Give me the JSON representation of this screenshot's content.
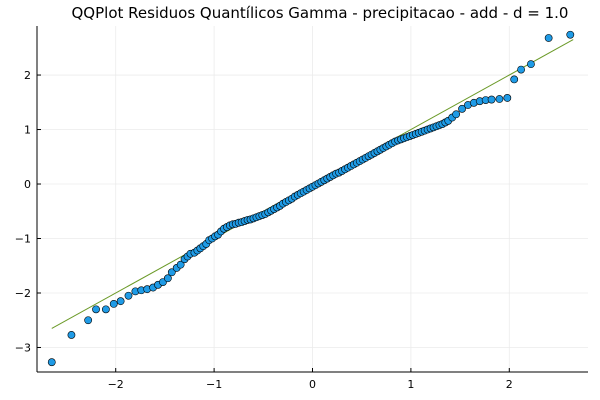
{
  "chart_data": {
    "type": "scatter",
    "title": "QQPlot Residuos Quantílicos Gamma - precipitacao - add - d = 1.0",
    "xlabel": "",
    "ylabel": "",
    "xlim": [
      -2.8,
      2.8
    ],
    "ylim": [
      -3.45,
      2.9
    ],
    "xticks": [
      -2,
      -1,
      0,
      1,
      2
    ],
    "yticks": [
      -3,
      -2,
      -1,
      0,
      1,
      2
    ],
    "xtick_labels": [
      "−2",
      "−1",
      "0",
      "1",
      "2"
    ],
    "ytick_labels": [
      "−3",
      "−2",
      "−1",
      "0",
      "1",
      "2"
    ],
    "grid": true,
    "legend": "none",
    "colors": {
      "points": "#1f9be6",
      "point_edge": "#000000",
      "line": "#6b9a28",
      "grid": "#ebebeb",
      "axis": "#000000"
    },
    "reference_line": {
      "x": [
        -2.65,
        2.65
      ],
      "y": [
        -2.65,
        2.65
      ]
    },
    "points": [
      [
        -2.65,
        -3.27
      ],
      [
        -2.45,
        -2.77
      ],
      [
        -2.28,
        -2.5
      ],
      [
        -2.2,
        -2.3
      ],
      [
        -2.1,
        -2.3
      ],
      [
        -2.02,
        -2.2
      ],
      [
        -1.95,
        -2.15
      ],
      [
        -1.87,
        -2.05
      ],
      [
        -1.8,
        -1.97
      ],
      [
        -1.74,
        -1.95
      ],
      [
        -1.68,
        -1.93
      ],
      [
        -1.62,
        -1.9
      ],
      [
        -1.57,
        -1.85
      ],
      [
        -1.52,
        -1.8
      ],
      [
        -1.47,
        -1.73
      ],
      [
        -1.43,
        -1.62
      ],
      [
        -1.38,
        -1.54
      ],
      [
        -1.34,
        -1.48
      ],
      [
        -1.3,
        -1.38
      ],
      [
        -1.27,
        -1.33
      ],
      [
        -1.24,
        -1.28
      ],
      [
        -1.2,
        -1.26
      ],
      [
        -1.17,
        -1.22
      ],
      [
        -1.14,
        -1.18
      ],
      [
        -1.11,
        -1.14
      ],
      [
        -1.08,
        -1.1
      ],
      [
        -1.05,
        -1.03
      ],
      [
        -1.02,
        -1.0
      ],
      [
        -0.99,
        -0.96
      ],
      [
        -0.96,
        -0.93
      ],
      [
        -0.93,
        -0.87
      ],
      [
        -0.9,
        -0.82
      ],
      [
        -0.87,
        -0.79
      ],
      [
        -0.84,
        -0.76
      ],
      [
        -0.81,
        -0.74
      ],
      [
        -0.78,
        -0.73
      ],
      [
        -0.75,
        -0.71
      ],
      [
        -0.72,
        -0.7
      ],
      [
        -0.69,
        -0.68
      ],
      [
        -0.66,
        -0.66
      ],
      [
        -0.63,
        -0.65
      ],
      [
        -0.6,
        -0.63
      ],
      [
        -0.57,
        -0.61
      ],
      [
        -0.54,
        -0.59
      ],
      [
        -0.51,
        -0.57
      ],
      [
        -0.48,
        -0.55
      ],
      [
        -0.45,
        -0.52
      ],
      [
        -0.42,
        -0.49
      ],
      [
        -0.39,
        -0.46
      ],
      [
        -0.36,
        -0.43
      ],
      [
        -0.33,
        -0.4
      ],
      [
        -0.3,
        -0.36
      ],
      [
        -0.27,
        -0.33
      ],
      [
        -0.24,
        -0.3
      ],
      [
        -0.21,
        -0.27
      ],
      [
        -0.18,
        -0.23
      ],
      [
        -0.15,
        -0.2
      ],
      [
        -0.12,
        -0.17
      ],
      [
        -0.09,
        -0.14
      ],
      [
        -0.06,
        -0.11
      ],
      [
        -0.03,
        -0.08
      ],
      [
        0.0,
        -0.05
      ],
      [
        0.03,
        -0.02
      ],
      [
        0.06,
        0.01
      ],
      [
        0.09,
        0.04
      ],
      [
        0.12,
        0.07
      ],
      [
        0.15,
        0.1
      ],
      [
        0.18,
        0.13
      ],
      [
        0.21,
        0.16
      ],
      [
        0.24,
        0.19
      ],
      [
        0.27,
        0.21
      ],
      [
        0.3,
        0.24
      ],
      [
        0.33,
        0.27
      ],
      [
        0.36,
        0.3
      ],
      [
        0.39,
        0.33
      ],
      [
        0.42,
        0.36
      ],
      [
        0.45,
        0.39
      ],
      [
        0.48,
        0.42
      ],
      [
        0.51,
        0.45
      ],
      [
        0.54,
        0.48
      ],
      [
        0.57,
        0.51
      ],
      [
        0.6,
        0.54
      ],
      [
        0.63,
        0.57
      ],
      [
        0.66,
        0.6
      ],
      [
        0.69,
        0.63
      ],
      [
        0.72,
        0.66
      ],
      [
        0.75,
        0.69
      ],
      [
        0.78,
        0.72
      ],
      [
        0.81,
        0.75
      ],
      [
        0.84,
        0.78
      ],
      [
        0.87,
        0.8
      ],
      [
        0.9,
        0.82
      ],
      [
        0.93,
        0.84
      ],
      [
        0.96,
        0.86
      ],
      [
        0.99,
        0.88
      ],
      [
        1.02,
        0.9
      ],
      [
        1.05,
        0.92
      ],
      [
        1.08,
        0.94
      ],
      [
        1.11,
        0.96
      ],
      [
        1.14,
        0.98
      ],
      [
        1.17,
        1.0
      ],
      [
        1.2,
        1.02
      ],
      [
        1.23,
        1.04
      ],
      [
        1.26,
        1.06
      ],
      [
        1.29,
        1.08
      ],
      [
        1.32,
        1.1
      ],
      [
        1.35,
        1.13
      ],
      [
        1.38,
        1.16
      ],
      [
        1.42,
        1.22
      ],
      [
        1.46,
        1.28
      ],
      [
        1.52,
        1.38
      ],
      [
        1.58,
        1.45
      ],
      [
        1.64,
        1.49
      ],
      [
        1.7,
        1.52
      ],
      [
        1.76,
        1.54
      ],
      [
        1.82,
        1.55
      ],
      [
        1.9,
        1.56
      ],
      [
        1.98,
        1.58
      ],
      [
        2.05,
        1.92
      ],
      [
        2.12,
        2.1
      ],
      [
        2.22,
        2.2
      ],
      [
        2.4,
        2.68
      ],
      [
        2.62,
        2.74
      ]
    ]
  }
}
